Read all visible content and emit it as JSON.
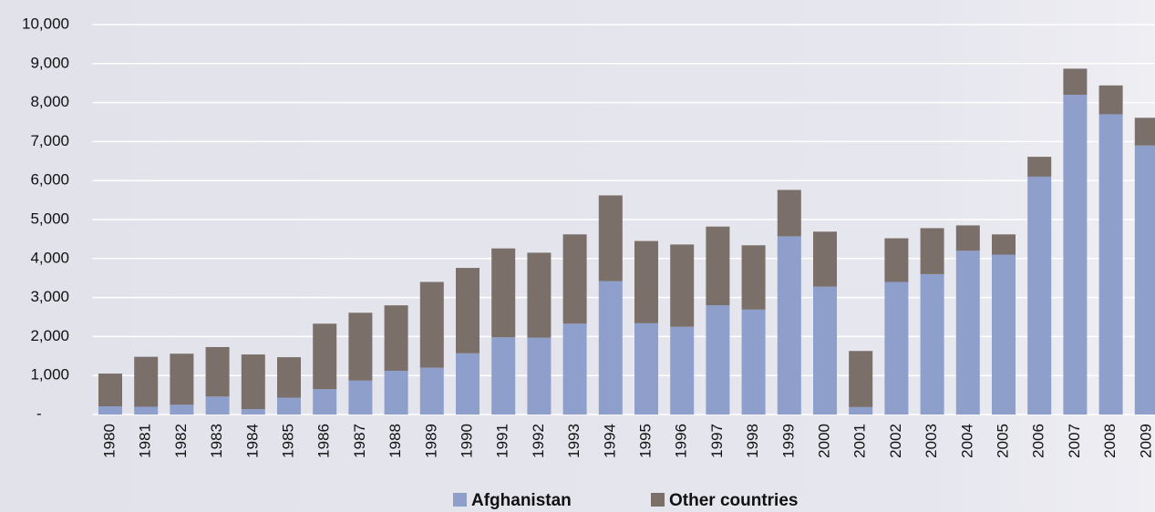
{
  "chart_data": {
    "type": "stacked_bar",
    "categories": [
      "1980",
      "1981",
      "1982",
      "1983",
      "1984",
      "1985",
      "1986",
      "1987",
      "1988",
      "1989",
      "1990",
      "1991",
      "1992",
      "1993",
      "1994",
      "1995",
      "1996",
      "1997",
      "1998",
      "1999",
      "2000",
      "2001",
      "2002",
      "2003",
      "2004",
      "2005",
      "2006",
      "2007",
      "2008",
      "2009"
    ],
    "series": [
      {
        "name": "Afghanistan",
        "color": "#8f9fcb",
        "values": [
          210,
          200,
          250,
          460,
          140,
          430,
          650,
          870,
          1120,
          1200,
          1570,
          1980,
          1970,
          2330,
          3420,
          2340,
          2250,
          2800,
          2690,
          4570,
          3280,
          190,
          3400,
          3600,
          4200,
          4100,
          6100,
          8200,
          7700,
          6900
        ]
      },
      {
        "name": "Other countries",
        "color": "#7b6f6a",
        "values": [
          840,
          1280,
          1310,
          1270,
          1400,
          1040,
          1680,
          1740,
          1680,
          2200,
          2190,
          2280,
          2180,
          2290,
          2200,
          2110,
          2110,
          2020,
          1650,
          1190,
          1410,
          1440,
          1120,
          1180,
          650,
          520,
          510,
          670,
          740,
          710
        ]
      }
    ],
    "ylim": [
      0,
      10000
    ],
    "yticks": [
      {
        "value": 0,
        "label": "-"
      },
      {
        "value": 1000,
        "label": "1,000"
      },
      {
        "value": 2000,
        "label": "2,000"
      },
      {
        "value": 3000,
        "label": "3,000"
      },
      {
        "value": 4000,
        "label": "4,000"
      },
      {
        "value": 5000,
        "label": "5,000"
      },
      {
        "value": 6000,
        "label": "6,000"
      },
      {
        "value": 7000,
        "label": "7,000"
      },
      {
        "value": 8000,
        "label": "8,000"
      },
      {
        "value": 9000,
        "label": "9,000"
      },
      {
        "value": 10000,
        "label": "10,000"
      }
    ],
    "grid": true,
    "legend": "bottom"
  }
}
